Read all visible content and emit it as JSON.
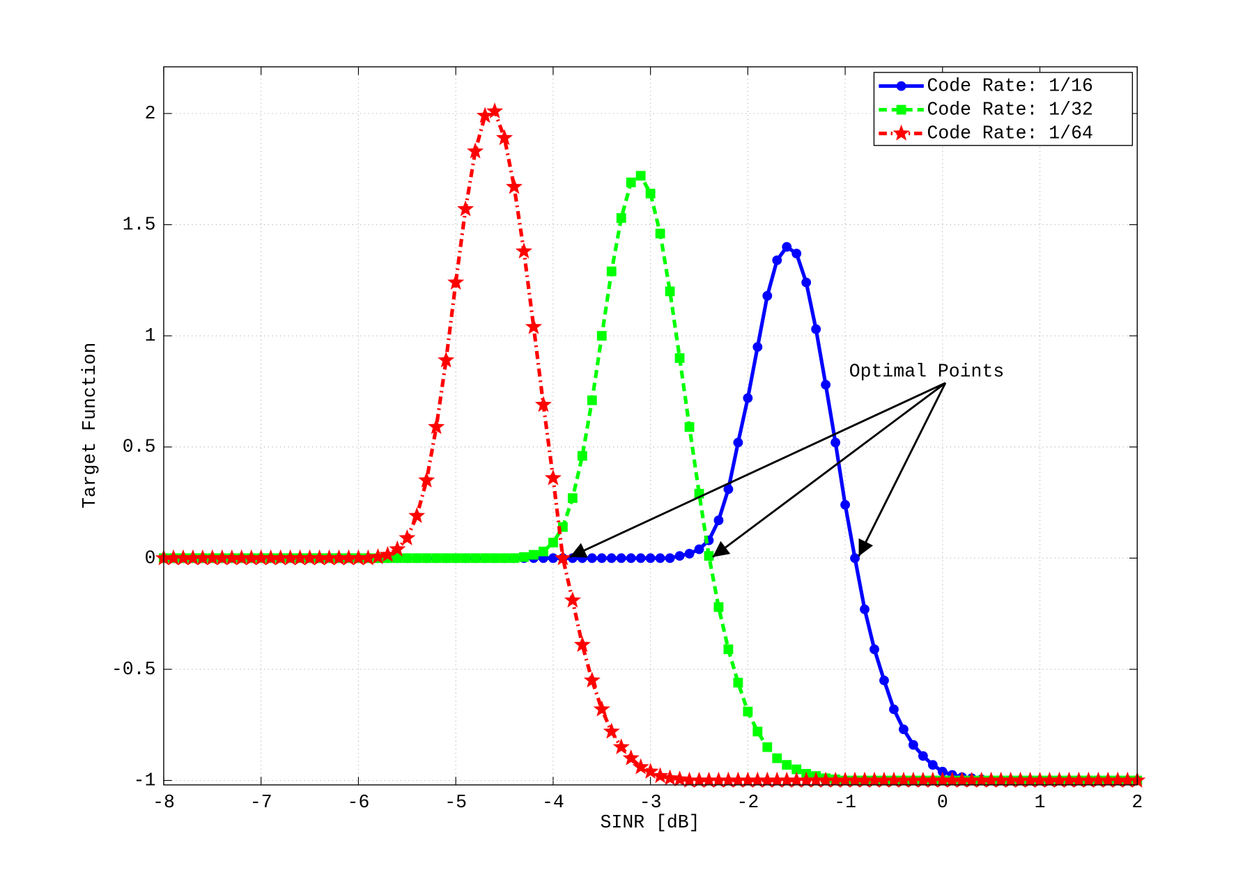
{
  "chart_data": {
    "type": "line",
    "xlabel": "SINR [dB]",
    "ylabel": "Target Function",
    "annotation": "Optimal Points",
    "xlim": [
      -8,
      2
    ],
    "ylim": [
      -1.02,
      2.21
    ],
    "xticks": [
      -8,
      -7,
      -6,
      -5,
      -4,
      -3,
      -2,
      -1,
      0,
      1,
      2
    ],
    "yticks": [
      -1,
      -0.5,
      0,
      0.5,
      1,
      1.5,
      2
    ],
    "grid": true,
    "legend": "upper right",
    "x": [
      -8,
      -7.9,
      -7.8,
      -7.7,
      -7.6,
      -7.5,
      -7.4,
      -7.3,
      -7.2,
      -7.1,
      -7,
      -6.9,
      -6.8,
      -6.7,
      -6.6,
      -6.5,
      -6.4,
      -6.3,
      -6.2,
      -6.1,
      -6,
      -5.9,
      -5.8,
      -5.7,
      -5.6,
      -5.5,
      -5.4,
      -5.3,
      -5.2,
      -5.1,
      -5,
      -4.9,
      -4.8,
      -4.7,
      -4.6,
      -4.5,
      -4.4,
      -4.3,
      -4.2,
      -4.1,
      -4,
      -3.9,
      -3.8,
      -3.7,
      -3.6,
      -3.5,
      -3.4,
      -3.3,
      -3.2,
      -3.1,
      -3,
      -2.9,
      -2.8,
      -2.7,
      -2.6,
      -2.5,
      -2.4,
      -2.3,
      -2.2,
      -2.1,
      -2,
      -1.9,
      -1.8,
      -1.7,
      -1.6,
      -1.5,
      -1.4,
      -1.3,
      -1.2,
      -1.1,
      -1,
      -0.9,
      -0.8,
      -0.7,
      -0.6,
      -0.5,
      -0.4,
      -0.3,
      -0.2,
      -0.1,
      0,
      0.1,
      0.2,
      0.3,
      0.4,
      0.5,
      0.6,
      0.7,
      0.8,
      0.9,
      1,
      1.1,
      1.2,
      1.3,
      1.4,
      1.5,
      1.6,
      1.7,
      1.8,
      1.9,
      2
    ],
    "series": [
      {
        "name": "Code Rate: 1/16",
        "color": "#0000ff",
        "marker": "circle",
        "linestyle": "solid",
        "values": [
          0,
          0,
          0,
          0,
          0,
          0,
          0,
          0,
          0,
          0,
          0,
          0,
          0,
          0,
          0,
          0,
          0,
          0,
          0,
          0,
          0,
          0,
          0,
          0,
          0,
          0,
          0,
          0,
          0,
          0,
          0,
          0,
          0,
          0,
          0,
          0,
          0,
          0,
          0,
          0,
          0,
          0,
          0,
          0,
          0,
          0,
          0,
          0,
          0,
          0,
          0,
          0,
          0,
          0.01,
          0.02,
          0.04,
          0.08,
          0.17,
          0.31,
          0.52,
          0.72,
          0.95,
          1.18,
          1.34,
          1.4,
          1.37,
          1.24,
          1.03,
          0.78,
          0.52,
          0.24,
          0,
          -0.23,
          -0.41,
          -0.55,
          -0.68,
          -0.77,
          -0.84,
          -0.89,
          -0.93,
          -0.96,
          -0.975,
          -0.985,
          -0.99,
          -0.995,
          -1,
          -1,
          -1,
          -1,
          -1,
          -1,
          -1,
          -1,
          -1,
          -1,
          -1,
          -1,
          -1,
          -1,
          -1,
          -1
        ]
      },
      {
        "name": "Code Rate: 1/32",
        "color": "#00ff00",
        "marker": "square",
        "linestyle": "dashed",
        "values": [
          0,
          0,
          0,
          0,
          0,
          0,
          0,
          0,
          0,
          0,
          0,
          0,
          0,
          0,
          0,
          0,
          0,
          0,
          0,
          0,
          0,
          0,
          0,
          0,
          0,
          0,
          0,
          0,
          0,
          0,
          0,
          0,
          0,
          0,
          0,
          0,
          0,
          0.005,
          0.015,
          0.03,
          0.07,
          0.14,
          0.27,
          0.46,
          0.71,
          1,
          1.29,
          1.53,
          1.69,
          1.72,
          1.64,
          1.46,
          1.2,
          0.9,
          0.59,
          0.29,
          0.01,
          -0.22,
          -0.41,
          -0.56,
          -0.69,
          -0.78,
          -0.85,
          -0.9,
          -0.93,
          -0.95,
          -0.97,
          -0.98,
          -0.99,
          -0.995,
          -1,
          -1,
          -1,
          -1,
          -1,
          -1,
          -1,
          -1,
          -1,
          -1,
          -1,
          -1,
          -1,
          -1,
          -1,
          -1,
          -1,
          -1,
          -1,
          -1,
          -1,
          -1,
          -1,
          -1,
          -1,
          -1,
          -1,
          -1,
          -1,
          -1,
          -1
        ]
      },
      {
        "name": "Code Rate: 1/64",
        "color": "#ff0000",
        "marker": "star",
        "linestyle": "dashdot",
        "values": [
          0,
          0,
          0,
          0,
          0,
          0,
          0,
          0,
          0,
          0,
          0,
          0,
          0,
          0,
          0,
          0,
          0,
          0,
          0,
          0,
          0,
          0,
          0.005,
          0.015,
          0.04,
          0.09,
          0.19,
          0.35,
          0.59,
          0.89,
          1.24,
          1.57,
          1.83,
          1.99,
          2.01,
          1.89,
          1.67,
          1.38,
          1.04,
          0.69,
          0.36,
          0,
          -0.19,
          -0.39,
          -0.55,
          -0.68,
          -0.78,
          -0.85,
          -0.9,
          -0.94,
          -0.96,
          -0.98,
          -0.99,
          -0.995,
          -1,
          -1,
          -1,
          -1,
          -1,
          -1,
          -1,
          -1,
          -1,
          -1,
          -1,
          -1,
          -1,
          -1,
          -1,
          -1,
          -1,
          -1,
          -1,
          -1,
          -1,
          -1,
          -1,
          -1,
          -1,
          -1,
          -1,
          -1,
          -1,
          -1,
          -1,
          -1,
          -1,
          -1,
          -1,
          -1,
          -1,
          -1,
          -1,
          -1,
          -1,
          -1,
          -1,
          -1,
          -1,
          -1,
          -1
        ]
      }
    ]
  }
}
